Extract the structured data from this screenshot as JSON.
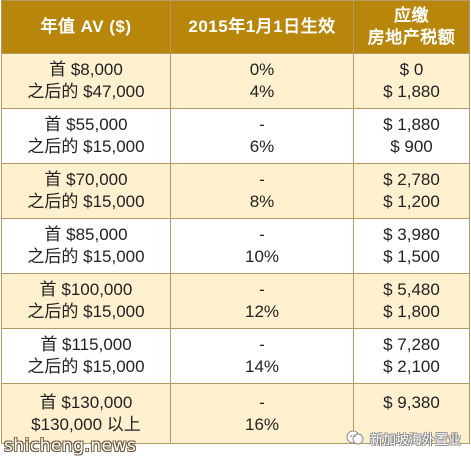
{
  "table": {
    "headers": {
      "col1": "年值 AV ($)",
      "col2": "2015年1月1日生效",
      "col3_line1": "应缴",
      "col3_line2": "房地产税额"
    },
    "rows": [
      {
        "av": [
          "首 $8,000",
          "之后的 $47,000"
        ],
        "rate": [
          "0%",
          "4%"
        ],
        "tax": [
          "$ 0",
          "$ 1,880"
        ]
      },
      {
        "av": [
          "首 $55,000",
          "之后的 $15,000"
        ],
        "rate": [
          "-",
          "6%"
        ],
        "tax": [
          "$ 1,880",
          "$ 900"
        ]
      },
      {
        "av": [
          "首 $70,000",
          "之后的 $15,000"
        ],
        "rate": [
          "-",
          "8%"
        ],
        "tax": [
          "$ 2,780",
          "$ 1,200"
        ]
      },
      {
        "av": [
          "首 $85,000",
          "之后的 $15,000"
        ],
        "rate": [
          "-",
          "10%"
        ],
        "tax": [
          "$ 3,980",
          "$ 1,500"
        ]
      },
      {
        "av": [
          "首 $100,000",
          "之后的 $15,000"
        ],
        "rate": [
          "-",
          "12%"
        ],
        "tax": [
          "$ 5,480",
          "$ 1,800"
        ]
      },
      {
        "av": [
          "首 $115,000",
          "之后的 $15,000"
        ],
        "rate": [
          "-",
          "14%"
        ],
        "tax": [
          "$ 7,280",
          "$ 2,100"
        ]
      },
      {
        "av": [
          "首 $130,000",
          "$130,000 以上"
        ],
        "rate": [
          "-",
          "16%"
        ],
        "tax": [
          "$ 9,380",
          ""
        ]
      }
    ]
  },
  "watermark": {
    "left": "shicheng.news",
    "right": "新加坡海外置业"
  },
  "colors": {
    "header_bg": "#b8860b",
    "odd_row_bg": "#fff0cf",
    "even_row_bg": "#ffffff",
    "border": "#b69a66"
  }
}
